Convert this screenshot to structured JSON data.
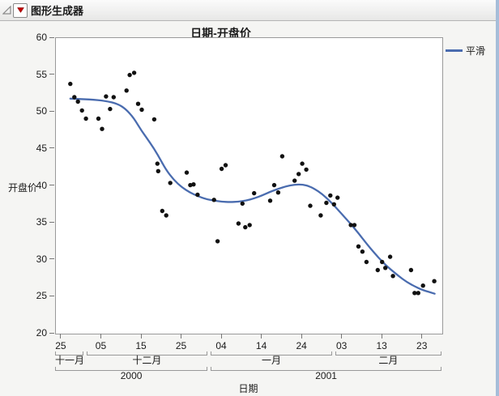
{
  "window": {
    "header": {
      "title": "图形生成器"
    },
    "accent_border_color": "#a6bdd9"
  },
  "chart_data": {
    "type": "scatter",
    "title": "日期-开盘价",
    "xlabel": "日期",
    "ylabel": "开盘价",
    "ylim": [
      20,
      60
    ],
    "y_ticks": [
      20,
      25,
      30,
      35,
      40,
      45,
      50,
      55,
      60
    ],
    "x_unit": "days since 2000-11-25",
    "xlim_days": [
      -1.4,
      94.9
    ],
    "grid": "off",
    "point_color": "#111111",
    "x_day_ticks": [
      {
        "day": 0,
        "label": "25"
      },
      {
        "day": 10,
        "label": "05"
      },
      {
        "day": 20,
        "label": "15"
      },
      {
        "day": 30,
        "label": "25"
      },
      {
        "day": 40,
        "label": "04"
      },
      {
        "day": 50,
        "label": "14"
      },
      {
        "day": 60,
        "label": "24"
      },
      {
        "day": 70,
        "label": "03"
      },
      {
        "day": 80,
        "label": "13"
      },
      {
        "day": 90,
        "label": "23"
      }
    ],
    "month_groups": [
      {
        "label": "十一月",
        "start": -1.4,
        "end": 6
      },
      {
        "label": "十二月",
        "start": 6,
        "end": 37
      },
      {
        "label": "一月",
        "start": 37,
        "end": 68
      },
      {
        "label": "二月",
        "start": 68,
        "end": 94.9
      }
    ],
    "year_groups": [
      {
        "label": "2000",
        "start": -1.4,
        "end": 37
      },
      {
        "label": "2001",
        "start": 37,
        "end": 94.9
      }
    ],
    "points": [
      [
        2.2,
        53.8
      ],
      [
        3.2,
        52.0
      ],
      [
        4.1,
        51.4
      ],
      [
        5.1,
        50.2
      ],
      [
        6.1,
        49.1
      ],
      [
        9.2,
        49.1
      ],
      [
        10.1,
        47.7
      ],
      [
        11.1,
        52.1
      ],
      [
        12.1,
        50.4
      ],
      [
        13.0,
        52.0
      ],
      [
        16.2,
        52.9
      ],
      [
        17.0,
        55.0
      ],
      [
        18.1,
        55.3
      ],
      [
        19.1,
        51.1
      ],
      [
        20.0,
        50.3
      ],
      [
        23.1,
        49.0
      ],
      [
        23.9,
        43.0
      ],
      [
        24.1,
        42.0
      ],
      [
        25.1,
        36.6
      ],
      [
        26.1,
        36.0
      ],
      [
        27.1,
        40.4
      ],
      [
        31.2,
        41.8
      ],
      [
        32.1,
        40.1
      ],
      [
        32.9,
        40.2
      ],
      [
        33.9,
        38.8
      ],
      [
        38.0,
        38.1
      ],
      [
        38.9,
        32.5
      ],
      [
        39.9,
        42.3
      ],
      [
        40.9,
        42.8
      ],
      [
        44.1,
        34.9
      ],
      [
        45.1,
        37.6
      ],
      [
        45.8,
        34.4
      ],
      [
        46.9,
        34.7
      ],
      [
        48.0,
        39.0
      ],
      [
        52.0,
        38.0
      ],
      [
        53.0,
        40.1
      ],
      [
        54.0,
        39.1
      ],
      [
        55.0,
        44.0
      ],
      [
        58.1,
        40.7
      ],
      [
        59.1,
        41.6
      ],
      [
        60.0,
        43.0
      ],
      [
        61.0,
        42.2
      ],
      [
        62.0,
        37.3
      ],
      [
        64.6,
        36.0
      ],
      [
        66.0,
        37.7
      ],
      [
        67.0,
        38.7
      ],
      [
        67.9,
        37.5
      ],
      [
        68.8,
        38.4
      ],
      [
        72.1,
        34.7
      ],
      [
        73.0,
        34.7
      ],
      [
        74.0,
        31.8
      ],
      [
        75.0,
        31.1
      ],
      [
        76.0,
        29.7
      ],
      [
        78.8,
        28.6
      ],
      [
        79.9,
        29.7
      ],
      [
        80.7,
        28.9
      ],
      [
        81.9,
        30.4
      ],
      [
        82.6,
        27.8
      ],
      [
        87.1,
        28.6
      ],
      [
        88.0,
        25.5
      ],
      [
        88.9,
        25.5
      ],
      [
        90.1,
        26.5
      ],
      [
        92.9,
        27.1
      ]
    ],
    "smooth": {
      "name": "平滑",
      "color": "#4a6caf",
      "points": [
        [
          2.2,
          51.8
        ],
        [
          7,
          51.7
        ],
        [
          11,
          51.5
        ],
        [
          14,
          51.1
        ],
        [
          16,
          50.4
        ],
        [
          18,
          49.2
        ],
        [
          20,
          47.4
        ],
        [
          22,
          45.9
        ],
        [
          24,
          44.2
        ],
        [
          26,
          42.2
        ],
        [
          28,
          40.8
        ],
        [
          30,
          39.8
        ],
        [
          32,
          39.1
        ],
        [
          34,
          38.6
        ],
        [
          36,
          38.2
        ],
        [
          38,
          38.0
        ],
        [
          40,
          37.85
        ],
        [
          42,
          37.8
        ],
        [
          44,
          37.85
        ],
        [
          46,
          38.0
        ],
        [
          48,
          38.3
        ],
        [
          50,
          38.7
        ],
        [
          52,
          39.2
        ],
        [
          54,
          39.6
        ],
        [
          56,
          39.95
        ],
        [
          58,
          40.15
        ],
        [
          60,
          40.2
        ],
        [
          62,
          39.9
        ],
        [
          64,
          39.3
        ],
        [
          66,
          38.4
        ],
        [
          68,
          37.3
        ],
        [
          70,
          36.1
        ],
        [
          72,
          34.9
        ],
        [
          74,
          33.6
        ],
        [
          76,
          32.2
        ],
        [
          78,
          30.9
        ],
        [
          80,
          29.7
        ],
        [
          82,
          28.7
        ],
        [
          84,
          27.8
        ],
        [
          86,
          27.0
        ],
        [
          88,
          26.4
        ],
        [
          90,
          25.9
        ],
        [
          93,
          25.4
        ]
      ]
    },
    "legend": {
      "position": "top-right",
      "entries": [
        {
          "label": "平滑",
          "color": "#4a6caf"
        }
      ]
    }
  }
}
